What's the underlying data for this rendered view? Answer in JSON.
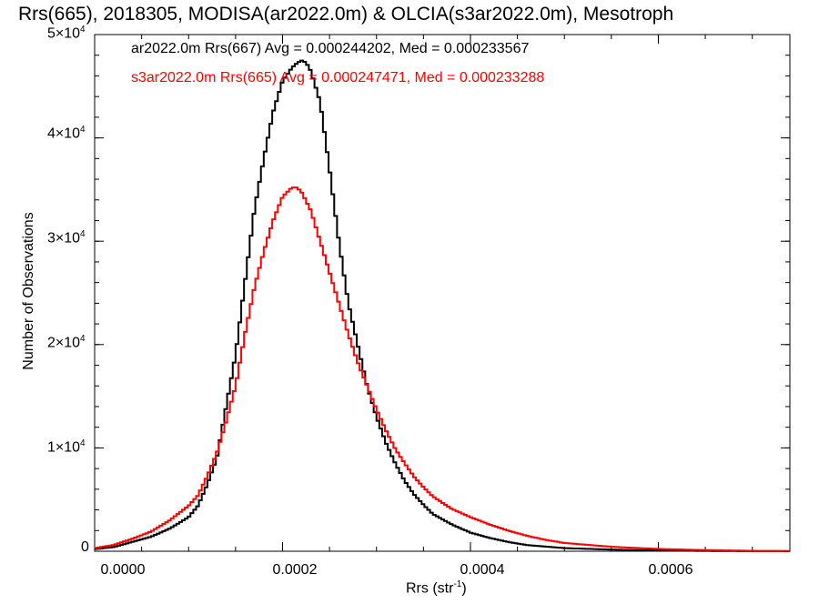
{
  "chart_data": {
    "type": "line",
    "title": "Rrs(665), 2018305, MODISA(ar2022.0m) & OLCIA(s3ar2022.0m), Mesotroph",
    "xlabel": {
      "base": "Rrs (str",
      "sup": "-1",
      "tail": ")"
    },
    "ylabel": "Number of Observations",
    "xlim": [
      0.0,
      0.00074
    ],
    "ylim": [
      0,
      50000
    ],
    "x_ticks": [
      {
        "value": 0.0,
        "label": "0.0000"
      },
      {
        "value": 0.0002,
        "label": "0.0002"
      },
      {
        "value": 0.0004,
        "label": "0.0004"
      },
      {
        "value": 0.0006,
        "label": "0.0006"
      }
    ],
    "y_ticks": [
      {
        "value": 0,
        "label": "0",
        "exp": ""
      },
      {
        "value": 10000,
        "label": "1×10",
        "exp": "4"
      },
      {
        "value": 20000,
        "label": "2×10",
        "exp": "4"
      },
      {
        "value": 30000,
        "label": "3×10",
        "exp": "4"
      },
      {
        "value": 40000,
        "label": "4×10",
        "exp": "4"
      },
      {
        "value": 50000,
        "label": "5×10",
        "exp": "4"
      }
    ],
    "grid": false,
    "legend": "top-left",
    "series": [
      {
        "name": "ar2022.0m Rrs(667) Avg = 0.000244202, Med = 0.000233567",
        "color": "#000000",
        "x": [
          0.0,
          2e-05,
          4e-05,
          6e-05,
          8e-05,
          0.0001,
          0.00011,
          0.00012,
          0.00013,
          0.00014,
          0.00015,
          0.00016,
          0.00017,
          0.00018,
          0.00019,
          0.0002,
          0.00021,
          0.000215,
          0.00022,
          0.000225,
          0.00023,
          0.00024,
          0.00025,
          0.00026,
          0.00027,
          0.00028,
          0.00029,
          0.0003,
          0.00031,
          0.00032,
          0.00033,
          0.00034,
          0.00035,
          0.00036,
          0.00038,
          0.0004,
          0.00042,
          0.00044,
          0.00046,
          0.00048,
          0.0005,
          0.00055,
          0.0006,
          0.00065,
          0.0007,
          0.00074
        ],
        "values": [
          200,
          400,
          900,
          1400,
          2200,
          3300,
          4400,
          6500,
          9000,
          14000,
          19000,
          26000,
          33000,
          38000,
          42500,
          45500,
          46800,
          47200,
          47500,
          47300,
          46500,
          43500,
          37000,
          30000,
          24000,
          20000,
          16000,
          13000,
          10500,
          8500,
          6800,
          5500,
          4500,
          3600,
          2600,
          1800,
          1300,
          900,
          600,
          450,
          300,
          160,
          70,
          30,
          10,
          5
        ]
      },
      {
        "name": "s3ar2022.0m Rrs(665) Avg = 0.000247471, Med = 0.000233288",
        "color": "#ff0000",
        "x": [
          0.0,
          2e-05,
          4e-05,
          6e-05,
          8e-05,
          0.0001,
          0.00011,
          0.00012,
          0.00013,
          0.00014,
          0.00015,
          0.00016,
          0.00017,
          0.00018,
          0.00019,
          0.0002,
          0.00021,
          0.000215,
          0.00022,
          0.00023,
          0.00024,
          0.00025,
          0.00026,
          0.00027,
          0.00028,
          0.00029,
          0.0003,
          0.00031,
          0.00032,
          0.00033,
          0.00034,
          0.00035,
          0.00036,
          0.00038,
          0.0004,
          0.00042,
          0.00044,
          0.00046,
          0.00048,
          0.0005,
          0.00055,
          0.0006,
          0.00065,
          0.0007,
          0.00074
        ],
        "values": [
          300,
          600,
          1200,
          1900,
          3000,
          4400,
          5400,
          7300,
          9500,
          12600,
          16000,
          21000,
          25500,
          29000,
          32000,
          34300,
          35200,
          35200,
          34800,
          33000,
          30000,
          27000,
          24000,
          21000,
          18300,
          16000,
          13700,
          11700,
          9900,
          8500,
          7200,
          6200,
          5300,
          4100,
          3300,
          2600,
          2000,
          1500,
          1100,
          800,
          430,
          220,
          110,
          40,
          20
        ]
      }
    ]
  }
}
